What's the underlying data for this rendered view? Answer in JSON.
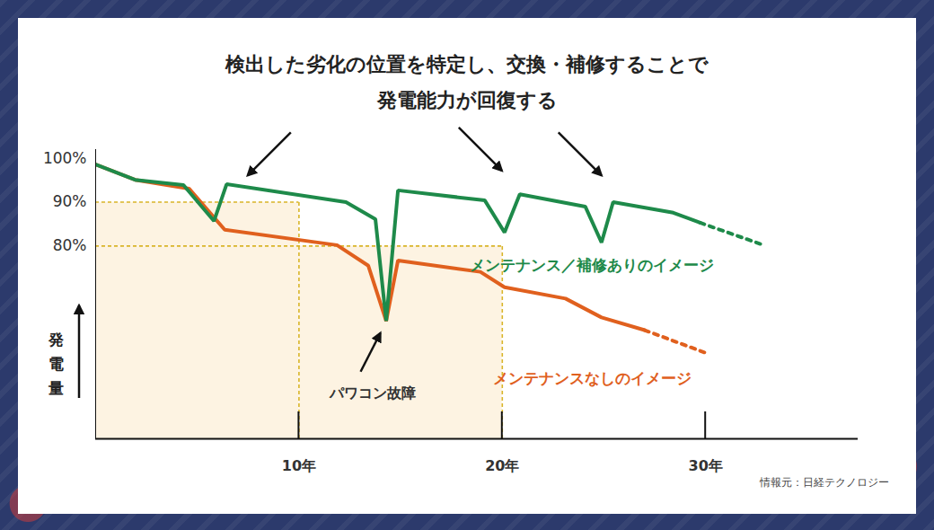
{
  "chart_data": {
    "type": "line",
    "title": "検出した劣化の位置を特定し、交換・補修することで\n発電能力が回復する",
    "y_label": "発電量",
    "source": "情報元：日経テクノロジー",
    "xlim": [
      0,
      37.5
    ],
    "xticks": [
      {
        "value": 10,
        "label": "10年"
      },
      {
        "value": 20,
        "label": "20年"
      },
      {
        "value": 30,
        "label": "30年"
      }
    ],
    "ylim": [
      36,
      102
    ],
    "yticks": [
      {
        "value": 100,
        "label": "100%"
      },
      {
        "value": 90,
        "label": "90%"
      },
      {
        "value": 80,
        "label": "80%"
      }
    ],
    "grid": false,
    "series": [
      {
        "name": "メンテナンスなしのイメージ",
        "color": "#e0601e",
        "line_style": "solid",
        "x": [
          0,
          1.94,
          4.59,
          6.35,
          11.87,
          13.41,
          14.29,
          14.87,
          18.92,
          20.11,
          23.11,
          24.88,
          27.0
        ],
        "values": [
          98.6,
          95.1,
          93.1,
          83.7,
          80.2,
          75.5,
          62.9,
          76.7,
          74.1,
          70.6,
          68.0,
          63.7,
          60.8
        ],
        "projection": {
          "line_style": "dotted",
          "x": [
            29.95
          ],
          "values": [
            55.7
          ]
        }
      },
      {
        "name": "メンテナンス／補修ありのイメージ",
        "color": "#1e8a4a",
        "line_style": "solid",
        "x": [
          0,
          1.94,
          4.32,
          5.82,
          6.44,
          12.31,
          13.76,
          14.29,
          14.87,
          19.14,
          20.11,
          20.86,
          24.08,
          24.88,
          25.45,
          28.41,
          29.73
        ],
        "values": [
          98.6,
          95.1,
          93.9,
          85.7,
          94.1,
          90.0,
          86.1,
          62.9,
          92.7,
          90.4,
          83.1,
          91.8,
          89.0,
          80.8,
          90.0,
          87.6,
          85.3
        ],
        "projection": {
          "line_style": "dotted",
          "x": [
            32.73
          ],
          "values": [
            80.4
          ]
        }
      }
    ],
    "reference_boxes": [
      {
        "x": 10,
        "y": 90
      },
      {
        "x": 20,
        "y": 80
      }
    ],
    "annotations": [
      {
        "text": "パワコン故障",
        "x": 14.29,
        "y": 62.9
      }
    ],
    "recovery_arrows": [
      {
        "x": 7.5,
        "y": 96.0
      },
      {
        "x": 20.0,
        "y": 97.1
      },
      {
        "x": 24.9,
        "y": 96.0
      }
    ]
  }
}
